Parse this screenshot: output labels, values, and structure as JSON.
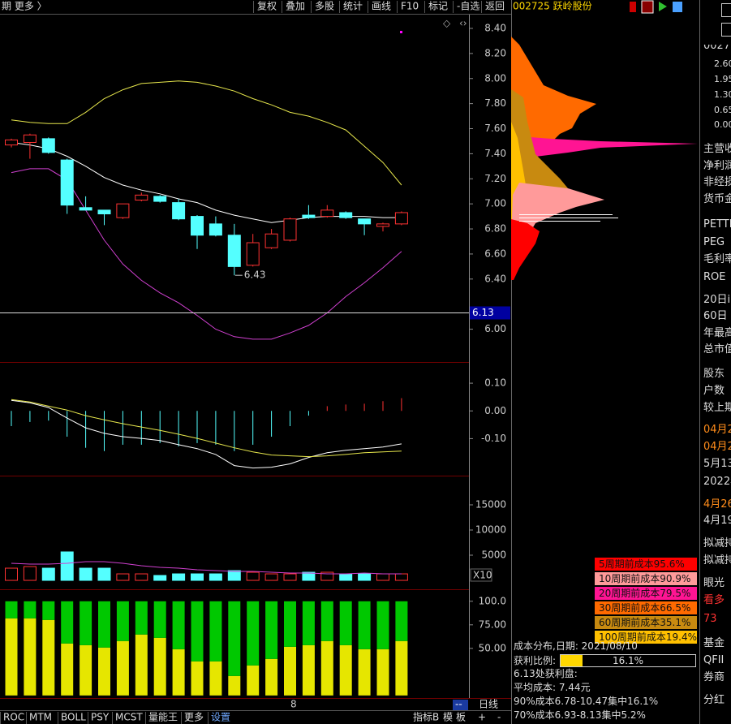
{
  "toolbar": {
    "left": "期 更多 〉",
    "buttons": [
      "复权",
      "叠加",
      "多股",
      "统计",
      "画线",
      "F10",
      "标记",
      "-自选",
      "返回"
    ],
    "stock": "002725 跃岭股份"
  },
  "chart_data": [
    {
      "type": "candlestick",
      "up_color": "#ff3232",
      "down_color": "#54ffff",
      "open": [
        7.47,
        7.49,
        7.52,
        7.35,
        6.97,
        6.95,
        6.89,
        7.03,
        7.06,
        7.01,
        6.9,
        6.84,
        6.75,
        6.51,
        6.65,
        6.71,
        6.91,
        6.9,
        6.93,
        6.88,
        6.82,
        6.84
      ],
      "high": [
        7.52,
        7.56,
        7.53,
        7.36,
        7.06,
        6.95,
        7.0,
        7.09,
        7.07,
        7.04,
        6.91,
        6.9,
        6.84,
        6.76,
        6.8,
        6.89,
        6.99,
        6.99,
        6.94,
        6.88,
        6.85,
        6.94
      ],
      "low": [
        7.45,
        7.36,
        7.4,
        6.92,
        6.95,
        6.83,
        6.88,
        7.02,
        7.01,
        6.87,
        6.64,
        6.74,
        6.43,
        6.5,
        6.64,
        6.7,
        6.88,
        6.89,
        6.88,
        6.75,
        6.78,
        6.83
      ],
      "close": [
        7.51,
        7.55,
        7.41,
        6.99,
        6.95,
        6.92,
        7.0,
        7.07,
        7.02,
        6.88,
        6.75,
        6.75,
        6.5,
        6.69,
        6.76,
        6.88,
        6.89,
        6.95,
        6.89,
        6.84,
        6.84,
        6.93
      ],
      "lines": [
        {
          "color": "#e6e64c",
          "values": [
            7.67,
            7.65,
            7.64,
            7.64,
            7.73,
            7.84,
            7.91,
            7.96,
            7.97,
            7.98,
            7.97,
            7.94,
            7.9,
            7.84,
            7.79,
            7.73,
            7.7,
            7.65,
            7.59,
            7.46,
            7.33,
            7.15
          ]
        },
        {
          "color": "#ffffff",
          "values": [
            7.49,
            7.47,
            7.44,
            7.38,
            7.3,
            7.21,
            7.15,
            7.11,
            7.08,
            7.04,
            7.01,
            6.95,
            6.91,
            6.88,
            6.85,
            6.87,
            6.89,
            6.9,
            6.9,
            6.9,
            6.89,
            6.89
          ]
        },
        {
          "color": "#d040d0",
          "values": [
            7.25,
            7.28,
            7.28,
            7.19,
            6.95,
            6.71,
            6.52,
            6.39,
            6.29,
            6.21,
            6.11,
            6.0,
            5.94,
            5.92,
            5.92,
            5.97,
            6.03,
            6.13,
            6.26,
            6.37,
            6.49,
            6.62
          ]
        }
      ],
      "ylim": [
        5.79,
        8.51
      ],
      "yticks": [
        {
          "value": 8.4,
          "label": "8.40"
        },
        {
          "value": 8.2,
          "label": "8.20"
        },
        {
          "value": 8.0,
          "label": "8.00"
        },
        {
          "value": 7.8,
          "label": "7.80"
        },
        {
          "value": 7.6,
          "label": "7.60"
        },
        {
          "value": 7.4,
          "label": "7.40"
        },
        {
          "value": 7.2,
          "label": "7.20"
        },
        {
          "value": 7.0,
          "label": "7.00"
        },
        {
          "value": 6.8,
          "label": "6.80"
        },
        {
          "value": 6.6,
          "label": "6.60"
        },
        {
          "value": 6.4,
          "label": "6.40"
        },
        {
          "value": 6.0,
          "label": "6.00"
        }
      ],
      "last_price": 6.13,
      "low_label": 6.43
    },
    {
      "type": "macd",
      "values": [
        -0.055,
        -0.04,
        -0.035,
        -0.093,
        -0.133,
        -0.145,
        -0.122,
        -0.122,
        -0.116,
        -0.128,
        -0.116,
        -0.122,
        -0.145,
        -0.122,
        -0.093,
        -0.055,
        -0.017,
        0.017,
        0.023,
        0.026,
        0.035,
        0.046
      ],
      "colors": [
        "#54ffff",
        "#ff3232"
      ],
      "lines": [
        {
          "color": "#ffffff",
          "values": [
            0.038,
            0.029,
            0.012,
            -0.026,
            -0.061,
            -0.081,
            -0.093,
            -0.099,
            -0.107,
            -0.122,
            -0.136,
            -0.157,
            -0.197,
            -0.206,
            -0.203,
            -0.191,
            -0.168,
            -0.151,
            -0.142,
            -0.136,
            -0.13,
            -0.119
          ]
        },
        {
          "color": "#e6e64c",
          "values": [
            0.041,
            0.032,
            0.017,
            0.003,
            -0.017,
            -0.032,
            -0.046,
            -0.058,
            -0.07,
            -0.084,
            -0.099,
            -0.116,
            -0.133,
            -0.148,
            -0.159,
            -0.162,
            -0.165,
            -0.162,
            -0.157,
            -0.151,
            -0.148,
            -0.145
          ]
        }
      ],
      "ylim": [
        -0.21,
        0.15
      ],
      "yticks": [
        {
          "value": 0.1,
          "label": "0.10"
        },
        {
          "value": 0,
          "label": "0.00"
        },
        {
          "value": -0.1,
          "label": "-0.10"
        }
      ]
    },
    {
      "type": "volume",
      "values": [
        2420,
        2740,
        2420,
        5650,
        2420,
        2420,
        1290,
        1290,
        970,
        1290,
        1290,
        1290,
        1940,
        1610,
        1290,
        1290,
        1610,
        1610,
        1290,
        1290,
        1290,
        1290
      ],
      "lines": [
        {
          "color": "#d040d0",
          "values": [
            3387,
            3226,
            3226,
            3387,
            3710,
            3710,
            3387,
            2903,
            2581,
            2419,
            2097,
            1935,
            1774,
            1774,
            1613,
            1452,
            1452,
            1290,
            1290,
            1452,
            1290,
            1290
          ]
        }
      ],
      "ylim": [
        -480,
        19350
      ],
      "yticks": [
        15000,
        10000,
        5000
      ],
      "unit_label": "X10"
    },
    {
      "type": "stacked_bar",
      "series": [
        {
          "color": "#e6e600",
          "values": [
            81.9,
            81.9,
            80.2,
            55.2,
            53.4,
            50.9,
            57.8,
            64.7,
            61.2,
            49.1,
            36.2,
            36.2,
            20.7,
            31.9,
            38.8,
            51.7,
            53.4,
            57.8,
            53.4,
            49.1,
            49.1,
            57.8
          ]
        },
        {
          "color": "#00c800",
          "values": [
            18.1,
            18.1,
            19.8,
            44.8,
            46.6,
            49.1,
            42.2,
            35.3,
            38.8,
            50.9,
            63.8,
            63.8,
            79.3,
            68.1,
            61.2,
            48.3,
            46.6,
            42.2,
            46.6,
            50.9,
            50.9,
            42.2
          ]
        }
      ],
      "ylim": [
        -1,
        105
      ],
      "yticks": [
        {
          "value": 100,
          "label": "100.0"
        },
        {
          "value": 75,
          "label": "75.00"
        },
        {
          "value": 50,
          "label": "50.00"
        }
      ]
    }
  ],
  "chips": {
    "legend": [
      {
        "text": "5周期前成本95.6%",
        "color": "#ff0000"
      },
      {
        "text": "10周期前成本90.9%",
        "color": "#ff9a9a"
      },
      {
        "text": "20周期前成本79.5%",
        "color": "#ff1493"
      },
      {
        "text": "30周期前成本66.5%",
        "color": "#ff6a00"
      },
      {
        "text": "60周期前成本35.1%",
        "color": "#c88a10"
      },
      {
        "text": "100周期前成本19.4%",
        "color": "#ffc000"
      }
    ],
    "title": "成本分布,日期:  2021/08/10",
    "profit_label": "获利比例:",
    "profit_ratio": {
      "value": 16.1,
      "label": "16.1%"
    },
    "lines": [
      "6.13处获利盘:",
      "平均成本:  7.44元",
      "90%成本6.78-10.47集中16.1%",
      "70%成本6.93-8.13集中5.2%"
    ]
  },
  "side": [
    {
      "text": "0027"
    },
    {
      "text": "2.60"
    },
    {
      "text": "1.95"
    },
    {
      "text": "1.30"
    },
    {
      "text": "0.65"
    },
    {
      "text": "0.00"
    },
    {
      "text": "主营收"
    },
    {
      "text": "净利润"
    },
    {
      "text": "非经损"
    },
    {
      "text": "货币金"
    },
    {
      "text": "PETTM"
    },
    {
      "text": "PEG"
    },
    {
      "text": "毛利率"
    },
    {
      "text": "ROE"
    },
    {
      "text": "20日i"
    },
    {
      "text": "60日"
    },
    {
      "text": "年最高"
    },
    {
      "text": "总市值"
    },
    {
      "text": "股东"
    },
    {
      "text": "户数"
    },
    {
      "text": "较上期"
    },
    {
      "text": "04月2",
      "color": "#ff8c1a"
    },
    {
      "text": "04月2",
      "color": "#ff8c1a"
    },
    {
      "text": "5月13"
    },
    {
      "text": "2022年"
    },
    {
      "text": "4月26",
      "color": "#ff8c1a"
    },
    {
      "text": "4月19"
    },
    {
      "text": "拟减持"
    },
    {
      "text": "拟减持"
    },
    {
      "text": "眼光"
    },
    {
      "text": "看多",
      "color": "#ff3232"
    },
    {
      "text": "73",
      "color": "#ff3232"
    },
    {
      "text": "基金"
    },
    {
      "text": "QFII"
    },
    {
      "text": "券商"
    },
    {
      "text": "分红"
    }
  ],
  "date_marker": "8",
  "period_box": "--",
  "period": "日线",
  "tabs": [
    "ROC",
    "MTM",
    "BOLL",
    "PSY",
    "MCST",
    "量能王",
    "更多",
    "设置"
  ],
  "right_tabs": [
    "指标B",
    "模",
    "板",
    "+",
    "-"
  ]
}
